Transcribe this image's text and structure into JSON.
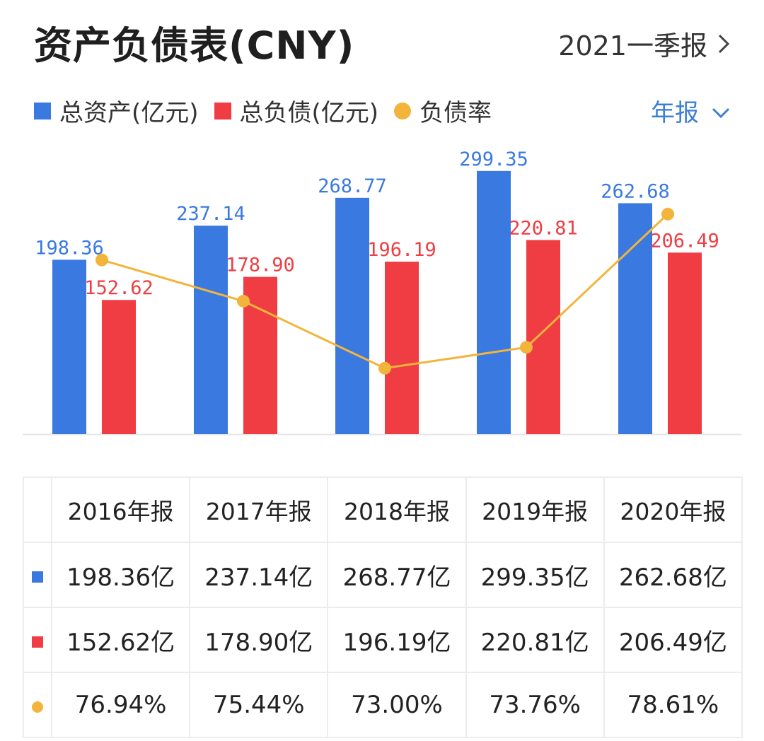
{
  "header": {
    "title": "资产负债表(CNY)",
    "period_label": "2021一季报"
  },
  "legend": {
    "items": [
      {
        "label": "总资产(亿元)",
        "color": "#3a79e0",
        "shape": "square"
      },
      {
        "label": "总负债(亿元)",
        "color": "#ef3d43",
        "shape": "square"
      },
      {
        "label": "负债率",
        "color": "#f3b43b",
        "shape": "dot"
      }
    ],
    "frequency": "年报"
  },
  "chart_data": {
    "type": "bar",
    "categories": [
      "2016年报",
      "2017年报",
      "2018年报",
      "2019年报",
      "2020年报"
    ],
    "series": [
      {
        "name": "总资产(亿元)",
        "type": "bar",
        "color": "#3a79e0",
        "values": [
          198.36,
          237.14,
          268.77,
          299.35,
          262.68
        ],
        "labels": [
          "198.36",
          "237.14",
          "268.77",
          "299.35",
          "262.68"
        ]
      },
      {
        "name": "总负债(亿元)",
        "type": "bar",
        "color": "#ef3d43",
        "values": [
          152.62,
          178.9,
          196.19,
          220.81,
          206.49
        ],
        "labels": [
          "152.62",
          "178.90",
          "196.19",
          "220.81",
          "206.49"
        ]
      },
      {
        "name": "负债率",
        "type": "line",
        "color": "#f3b43b",
        "values": [
          76.94,
          75.44,
          73.0,
          73.76,
          78.61
        ]
      }
    ],
    "ylim": [
      0,
      300
    ],
    "ratio_ylim": [
      70.6,
      80.2
    ],
    "grid": false
  },
  "table": {
    "headers": [
      "2016年报",
      "2017年报",
      "2018年报",
      "2019年报",
      "2020年报"
    ],
    "rows": [
      {
        "marker": "square",
        "color": "#3a79e0",
        "cells": [
          "198.36亿",
          "237.14亿",
          "268.77亿",
          "299.35亿",
          "262.68亿"
        ]
      },
      {
        "marker": "square",
        "color": "#ef3d43",
        "cells": [
          "152.62亿",
          "178.90亿",
          "196.19亿",
          "220.81亿",
          "206.49亿"
        ]
      },
      {
        "marker": "dot",
        "color": "#f3b43b",
        "cells": [
          "76.94%",
          "75.44%",
          "73.00%",
          "73.76%",
          "78.61%"
        ]
      }
    ]
  }
}
